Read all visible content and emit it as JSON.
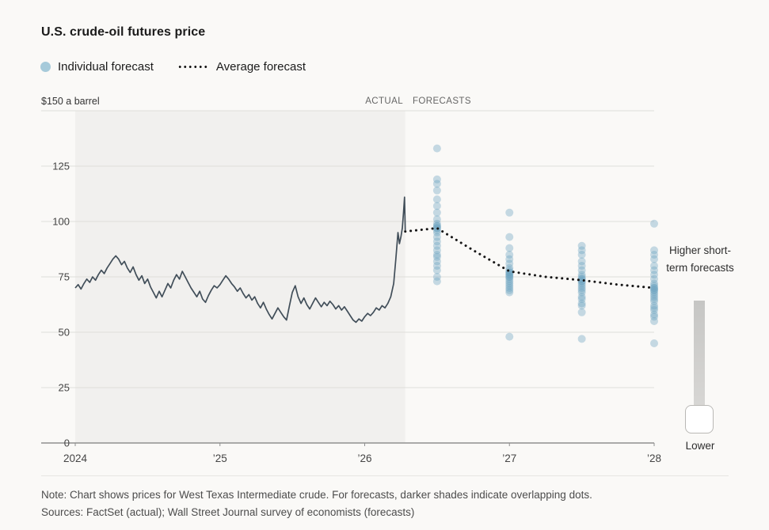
{
  "page": {
    "title": "U.S. crude-oil futures price",
    "note_line1": "Note: Chart shows prices for West Texas Intermediate crude. For forecasts, darker shades indicate overlapping dots.",
    "note_line2": "Sources: FactSet (actual); Wall Street Journal survey of economists (forecasts)"
  },
  "legend": {
    "individual_label": "Individual forecast",
    "average_label": "Average forecast",
    "individual_color": "#a6cada",
    "average_color": "#161616"
  },
  "annotation": {
    "higher_label": "Higher short-term forecasts",
    "lower_label": "Lower"
  },
  "chart_data": {
    "type": "line",
    "title": "U.S. crude-oil futures price",
    "unit_label": "$150 a barrel",
    "region_labels": {
      "actual": "ACTUAL",
      "forecasts": "FORECASTS"
    },
    "xlim": [
      2024,
      2028
    ],
    "ylim": [
      0,
      150
    ],
    "yticks": [
      0,
      25,
      50,
      75,
      100,
      125
    ],
    "xticks": [
      {
        "x": 2024,
        "label": "2024"
      },
      {
        "x": 2025,
        "label": "’25"
      },
      {
        "x": 2026,
        "label": "’26"
      },
      {
        "x": 2027,
        "label": "’27"
      },
      {
        "x": 2028,
        "label": "’28"
      }
    ],
    "actual_region_end": 2026.28,
    "actual_series": {
      "name": "WTI crude futures price (actual)",
      "x": [
        2024.0,
        2024.02,
        2024.04,
        2024.06,
        2024.08,
        2024.1,
        2024.12,
        2024.14,
        2024.16,
        2024.18,
        2024.2,
        2024.22,
        2024.24,
        2024.26,
        2024.28,
        2024.3,
        2024.32,
        2024.34,
        2024.36,
        2024.38,
        2024.4,
        2024.42,
        2024.44,
        2024.46,
        2024.48,
        2024.5,
        2024.52,
        2024.54,
        2024.56,
        2024.58,
        2024.6,
        2024.62,
        2024.64,
        2024.66,
        2024.68,
        2024.7,
        2024.72,
        2024.74,
        2024.76,
        2024.78,
        2024.8,
        2024.82,
        2024.84,
        2024.86,
        2024.88,
        2024.9,
        2024.92,
        2024.94,
        2024.96,
        2024.98,
        2025.0,
        2025.02,
        2025.04,
        2025.06,
        2025.08,
        2025.1,
        2025.12,
        2025.14,
        2025.16,
        2025.18,
        2025.2,
        2025.22,
        2025.24,
        2025.26,
        2025.28,
        2025.3,
        2025.32,
        2025.34,
        2025.36,
        2025.38,
        2025.4,
        2025.42,
        2025.44,
        2025.46,
        2025.48,
        2025.5,
        2025.52,
        2025.54,
        2025.56,
        2025.58,
        2025.6,
        2025.62,
        2025.64,
        2025.66,
        2025.68,
        2025.7,
        2025.72,
        2025.74,
        2025.76,
        2025.78,
        2025.8,
        2025.82,
        2025.84,
        2025.86,
        2025.88,
        2025.9,
        2025.92,
        2025.94,
        2025.96,
        2025.98,
        2026.0,
        2026.02,
        2026.04,
        2026.06,
        2026.08,
        2026.1,
        2026.12,
        2026.14,
        2026.16,
        2026.18,
        2026.2,
        2026.215,
        2026.23,
        2026.24,
        2026.25,
        2026.26,
        2026.268,
        2026.275,
        2026.28
      ],
      "y": [
        70,
        71.5,
        69.5,
        72,
        74,
        72.5,
        75,
        73.5,
        76,
        78,
        76.5,
        79,
        81,
        83,
        84.5,
        83,
        80.5,
        82,
        79,
        77,
        79.5,
        76,
        73.5,
        75.5,
        72,
        74,
        70.5,
        68,
        65.5,
        68.5,
        66,
        69,
        72,
        70,
        73.5,
        76,
        74,
        77.5,
        75,
        72.5,
        70,
        68,
        66,
        68.5,
        65,
        63.5,
        66.5,
        69,
        71,
        70,
        71.5,
        73.5,
        75.5,
        74,
        72,
        70.5,
        68.5,
        70,
        67.5,
        65.5,
        67,
        64.5,
        66,
        63,
        61,
        63.5,
        60.5,
        58,
        56,
        58.5,
        61,
        59,
        57,
        55.5,
        62,
        68,
        71,
        66,
        63,
        65.5,
        62.5,
        60.5,
        63,
        65.5,
        63.5,
        61.5,
        63.5,
        62,
        64,
        62.5,
        60.5,
        62,
        60,
        61.5,
        59.5,
        57.5,
        55.5,
        54.5,
        56,
        55,
        57,
        58.5,
        57.5,
        59,
        61,
        60,
        62,
        61,
        63,
        66,
        72,
        83,
        95,
        90,
        93,
        97,
        104,
        111,
        96
      ]
    },
    "forecast_columns": [
      {
        "x": 2026.5,
        "values": [
          133,
          119,
          117,
          114,
          110,
          107,
          104,
          101,
          99,
          98,
          98,
          97,
          97,
          96,
          95,
          93,
          91,
          89,
          87,
          85,
          84,
          82,
          80,
          78,
          75,
          73
        ]
      },
      {
        "x": 2027.0,
        "values": [
          104,
          93,
          88,
          85,
          83,
          81,
          79,
          78,
          77,
          77,
          76,
          76,
          75,
          75,
          74,
          73,
          72,
          71,
          70,
          69,
          68,
          48
        ]
      },
      {
        "x": 2027.5,
        "values": [
          89,
          87,
          85,
          82,
          80,
          78,
          76,
          75,
          74,
          74,
          73,
          73,
          72,
          71,
          70,
          69,
          68,
          66,
          65,
          63,
          62,
          59,
          47
        ]
      },
      {
        "x": 2028.0,
        "values": [
          99,
          87,
          85,
          83,
          80,
          78,
          76,
          74,
          72,
          71,
          70,
          70,
          69,
          69,
          68,
          67,
          66,
          65,
          64,
          62,
          61,
          60,
          58,
          57,
          55,
          45
        ]
      }
    ],
    "average_forecast": {
      "x": [
        2026.28,
        2026.5,
        2026.75,
        2027.0,
        2027.25,
        2027.5,
        2027.75,
        2028.0
      ],
      "y": [
        95.5,
        97,
        87,
        77.5,
        75,
        73.5,
        71.5,
        70
      ]
    },
    "colors": {
      "actual_line": "#414e59",
      "forecast_dot": "#6ba3bf",
      "average_line": "#161616",
      "actual_region_bg": "#f1f0ee",
      "gridline": "#dfdedb",
      "baseline": "#8f8f8f"
    }
  }
}
